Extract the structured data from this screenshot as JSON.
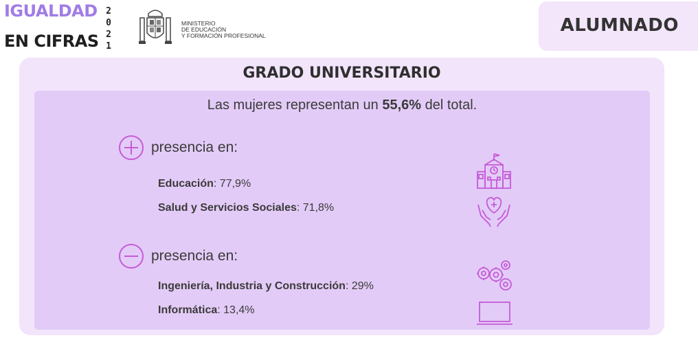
{
  "brand": {
    "line1": "IGUALDAD",
    "line2": "EN CIFRAS",
    "year_digits": [
      "2",
      "0",
      "2",
      "1"
    ]
  },
  "ministry": {
    "lines": [
      "MINISTERIO",
      "DE EDUCACIÓN",
      "Y FORMACIÓN PROFESIONAL"
    ]
  },
  "header_tag": "ALUMNADO",
  "section": {
    "title": "GRADO UNIVERSITARIO",
    "summary_prefix": "Las mujeres representan un ",
    "summary_value": "55,6%",
    "summary_suffix": " del total."
  },
  "more_presence": {
    "label": "presencia en:",
    "icon": "plus-circle-icon",
    "items": [
      {
        "field": "Educación",
        "value": ": 77,9%",
        "icon": "school-building-icon"
      },
      {
        "field": "Salud y Servicios Sociales",
        "value": ": 71,8%",
        "icon": "hands-heart-icon"
      }
    ]
  },
  "less_presence": {
    "label": "presencia en:",
    "icon": "minus-circle-icon",
    "items": [
      {
        "field": "Ingeniería, Industria y Construcción",
        "value": ": 29%",
        "icon": "gears-icon"
      },
      {
        "field": "Informática",
        "value": ": 13,4%",
        "icon": "laptop-icon"
      }
    ]
  },
  "colors": {
    "brand_purple": "#a17ce6",
    "icon_magenta": "#c55ad8",
    "outer_panel": "#f2e4fb",
    "inner_panel": "#e3cbf7"
  }
}
